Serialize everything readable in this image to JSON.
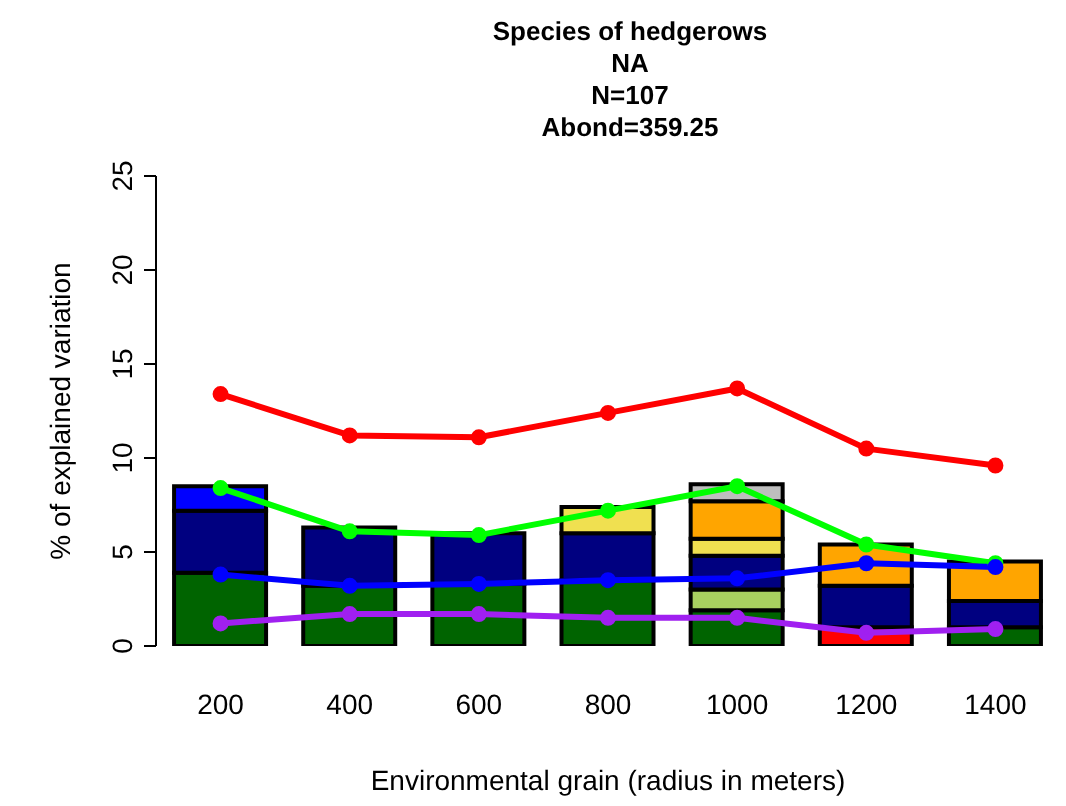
{
  "chart_data": {
    "type": "bar",
    "stacked": true,
    "title": "Species of hedgerows",
    "subtitle": "NA\nN=107\nAbond=359.25",
    "xlabel": "Environmental grain (radius in meters)",
    "ylabel": "% of explained variation",
    "categories": [
      "200",
      "400",
      "600",
      "800",
      "1000",
      "1200",
      "1400"
    ],
    "ylim": [
      0,
      25
    ],
    "yticks": [
      0,
      5,
      10,
      15,
      20,
      25
    ],
    "grid": false,
    "legend": false,
    "marker": "circle",
    "line_style": "solid",
    "series": [
      {
        "color": "#006400",
        "values": [
          3.9,
          3.2,
          3.3,
          3.5,
          1.9,
          null,
          1.0
        ]
      },
      {
        "color": "#ff0000",
        "values": [
          null,
          null,
          null,
          null,
          null,
          1.0,
          null
        ]
      },
      {
        "color": "#a8d060",
        "values": [
          null,
          null,
          null,
          null,
          1.1,
          null,
          null
        ]
      },
      {
        "color": "#000080",
        "values": [
          3.3,
          3.1,
          2.7,
          2.5,
          1.8,
          2.2,
          1.4
        ]
      },
      {
        "color": "#0000ff",
        "values": [
          1.3,
          null,
          null,
          null,
          null,
          null,
          null
        ]
      },
      {
        "color": "#f0e050",
        "values": [
          null,
          null,
          null,
          1.4,
          0.9,
          null,
          null
        ]
      },
      {
        "color": "#ffa500",
        "values": [
          null,
          null,
          null,
          null,
          2.0,
          2.2,
          2.1
        ]
      },
      {
        "color": "#bebebe",
        "values": [
          null,
          null,
          null,
          null,
          0.9,
          null,
          null
        ]
      },
      {
        "type": "line",
        "color": "#ff0000",
        "values": [
          13.4,
          11.2,
          11.1,
          12.4,
          13.7,
          10.5,
          9.6
        ]
      },
      {
        "type": "line",
        "color": "#00ff00",
        "values": [
          8.4,
          6.1,
          5.9,
          7.2,
          8.5,
          5.4,
          4.4
        ]
      },
      {
        "type": "line",
        "color": "#0000ff",
        "values": [
          3.8,
          3.2,
          3.3,
          3.5,
          3.6,
          4.4,
          4.2
        ]
      },
      {
        "type": "line",
        "color": "#a020f0",
        "values": [
          1.2,
          1.7,
          1.7,
          1.5,
          1.5,
          0.7,
          0.9
        ]
      }
    ]
  }
}
